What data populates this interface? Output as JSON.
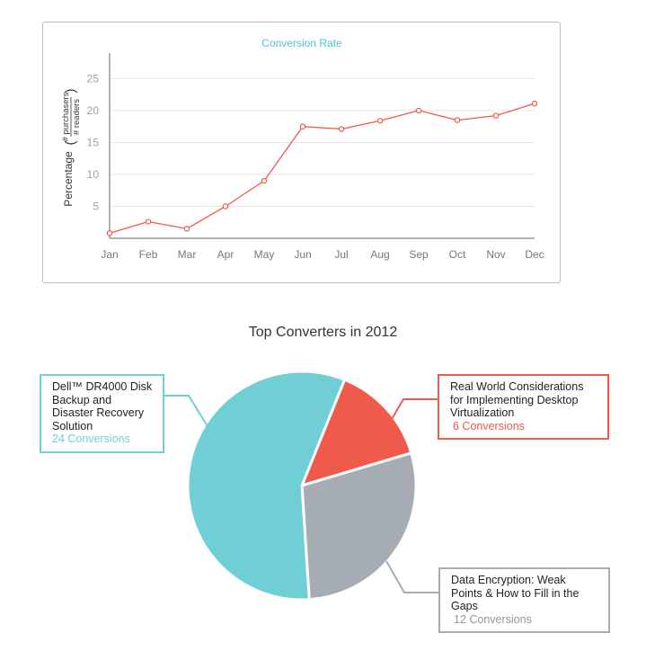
{
  "chart_data": [
    {
      "type": "line",
      "title": "Conversion Rate",
      "ylabel_prefix": "Percentage",
      "ylabel_fraction": {
        "numerator": "# purchasers",
        "denominator": "# readers"
      },
      "x": [
        "Jan",
        "Feb",
        "Mar",
        "Apr",
        "May",
        "Jun",
        "Jul",
        "Aug",
        "Sep",
        "Oct",
        "Nov",
        "Dec"
      ],
      "y": [
        0.8,
        2.6,
        1.5,
        5.0,
        9.0,
        17.5,
        17.1,
        18.4,
        20.0,
        18.5,
        19.2,
        21.1
      ],
      "yticks": [
        5,
        10,
        15,
        20,
        25
      ],
      "ylim": [
        0,
        29
      ],
      "grid": true,
      "color": "#f05a4a"
    },
    {
      "type": "pie",
      "title": "Top Converters in 2012",
      "slices": [
        {
          "label": "Dell™ DR4000 Disk Backup and Disaster Recovery Solution",
          "value": 24,
          "count_label": "24 Conversions",
          "color": "#70cfd4"
        },
        {
          "label": "Real World Considerations for Implementing Desktop Virtualization",
          "value": 6,
          "count_label": "6 Conversions",
          "color": "#f05a4a"
        },
        {
          "label": "Data Encryption: Weak Points & How to Fill in the Gaps",
          "value": 12,
          "count_label": "12 Conversions",
          "color": "#a5acb3"
        }
      ]
    }
  ]
}
